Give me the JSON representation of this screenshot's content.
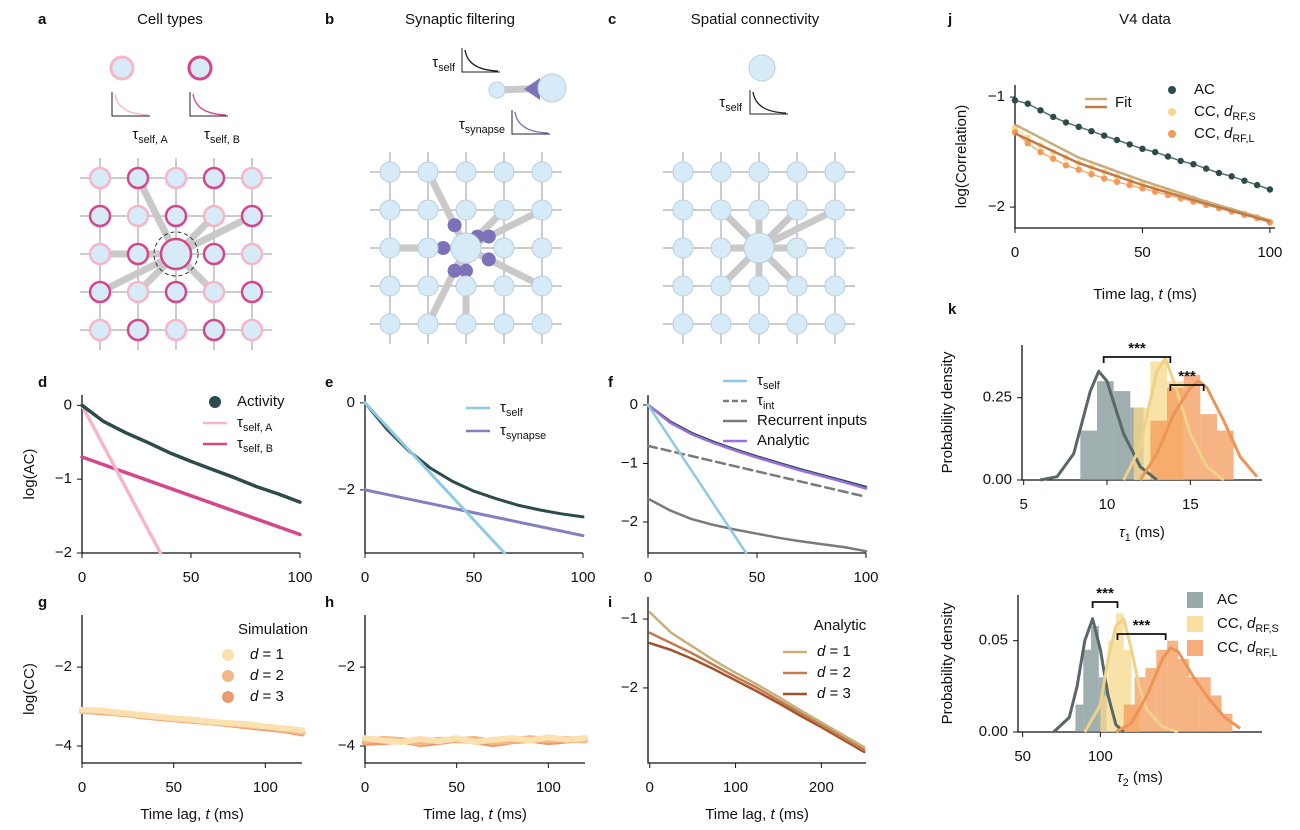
{
  "diagrams": [
    {
      "letter": "a",
      "title": "Cell types",
      "labels": [
        "τself, A",
        "τself, B"
      ]
    },
    {
      "letter": "b",
      "title": "Synaptic filtering",
      "labels": [
        "τself",
        "τsynapse"
      ]
    },
    {
      "letter": "c",
      "title": "Spatial connectivity",
      "labels": [
        "τself"
      ]
    }
  ],
  "chart_data": [
    {
      "letter": "d",
      "type": "line",
      "ylabel": "log(AC)",
      "xlim": [
        0,
        100
      ],
      "ylim": [
        -2,
        0.14
      ],
      "xticks": [
        0,
        50,
        100
      ],
      "yticks": [
        0,
        {
          "value": -1,
          "label": "−1"
        },
        {
          "value": -2,
          "label": "−2"
        }
      ],
      "legend": "upper right",
      "series": [
        {
          "name": "Activity",
          "color": "#2e4b4b",
          "marker": "o",
          "x": [
            0,
            10,
            20,
            30,
            40,
            50,
            60,
            70,
            80,
            90,
            100
          ],
          "values": [
            0,
            -0.22,
            -0.37,
            -0.5,
            -0.64,
            -0.76,
            -0.87,
            -0.98,
            -1.1,
            -1.2,
            -1.31
          ]
        },
        {
          "name": "τself, A",
          "color": "#f7b6c8",
          "x": [
            0,
            36
          ],
          "values": [
            0,
            -2
          ]
        },
        {
          "name": "τself, B",
          "color": "#d6478a",
          "x": [
            0,
            100
          ],
          "values": [
            -0.7,
            -1.75
          ]
        }
      ]
    },
    {
      "letter": "e",
      "type": "line",
      "xlim": [
        0,
        100
      ],
      "ylim": [
        -3.45,
        0.18
      ],
      "xticks": [
        0,
        50,
        100
      ],
      "yticks": [
        0,
        {
          "value": -2,
          "label": "−2"
        }
      ],
      "legend": "upper right",
      "series": [
        {
          "name": "τself",
          "color": "#8ecae6",
          "x": [
            0,
            64
          ],
          "values": [
            0,
            -3.45
          ]
        },
        {
          "name": "τsynapse",
          "color": "#8480c0",
          "x": [
            0,
            100
          ],
          "values": [
            -2,
            -3.05
          ]
        },
        {
          "color": "#2e4b4b",
          "x": [
            0,
            10,
            20,
            30,
            40,
            50,
            60,
            70,
            80,
            90,
            100
          ],
          "values": [
            0,
            -0.6,
            -1.1,
            -1.5,
            -1.8,
            -2.03,
            -2.2,
            -2.35,
            -2.46,
            -2.55,
            -2.62
          ]
        }
      ]
    },
    {
      "letter": "f",
      "type": "line",
      "xlim": [
        0,
        100
      ],
      "ylim": [
        -2.53,
        0.17
      ],
      "xticks": [
        0,
        50,
        100
      ],
      "yticks": [
        0,
        {
          "value": -1,
          "label": "−1"
        },
        {
          "value": -2,
          "label": "−2"
        }
      ],
      "legend": "upper right",
      "series": [
        {
          "name": "τself",
          "color": "#8ecae6",
          "x": [
            0,
            45
          ],
          "values": [
            0,
            -2.53
          ]
        },
        {
          "name": "τint",
          "color": "#7a7a7a",
          "dash": true,
          "x": [
            0,
            100
          ],
          "values": [
            -0.7,
            -1.57
          ]
        },
        {
          "name": "Recurrent inputs",
          "color": "#7a7a7a",
          "x": [
            0,
            10,
            20,
            30,
            40,
            50,
            60,
            70,
            80,
            90,
            100
          ],
          "values": [
            -1.6,
            -1.8,
            -1.95,
            -2.05,
            -2.13,
            -2.2,
            -2.27,
            -2.33,
            -2.38,
            -2.43,
            -2.5
          ]
        },
        {
          "name": "Analytic",
          "color": "#9b6fe0",
          "x": [
            0,
            10,
            20,
            30,
            40,
            50,
            60,
            70,
            80,
            90,
            100
          ],
          "values": [
            0,
            -0.3,
            -0.5,
            -0.65,
            -0.78,
            -0.9,
            -1.01,
            -1.12,
            -1.22,
            -1.32,
            -1.43
          ]
        },
        {
          "color": "#2e4b4b",
          "x": [
            0,
            10,
            20,
            30,
            40,
            50,
            60,
            70,
            80,
            90,
            100
          ],
          "values": [
            0,
            -0.28,
            -0.48,
            -0.63,
            -0.76,
            -0.88,
            -0.99,
            -1.1,
            -1.2,
            -1.3,
            -1.4
          ]
        }
      ]
    },
    {
      "letter": "j",
      "type": "scatter",
      "title": "V4 data",
      "xlabel": "Time lag, t (ms)",
      "ylabel": "log(Correlation)",
      "xlim": [
        0,
        102
      ],
      "ylim": [
        -2.19,
        -0.89
      ],
      "xticks": [
        0,
        50,
        100
      ],
      "yticks": [
        {
          "value": -1,
          "label": "−1"
        },
        {
          "value": -2,
          "label": "−2"
        }
      ],
      "legend": "upper right",
      "fit_label": "Fit",
      "x": [
        0,
        5,
        10,
        15,
        20,
        25,
        30,
        35,
        40,
        45,
        50,
        55,
        60,
        65,
        70,
        75,
        80,
        85,
        90,
        95,
        100
      ],
      "series": [
        {
          "name": "AC",
          "color": "#2e4b4b",
          "marker": "o",
          "values": [
            -1.03,
            -1.06,
            -1.12,
            -1.18,
            -1.23,
            -1.27,
            -1.31,
            -1.35,
            -1.39,
            -1.43,
            -1.47,
            -1.5,
            -1.54,
            -1.58,
            -1.61,
            -1.65,
            -1.69,
            -1.72,
            -1.76,
            -1.8,
            -1.84
          ]
        },
        {
          "name": "CC, dRF,S",
          "color": "#f7d88a",
          "marker": "o",
          "values": [
            -1.28,
            -1.37,
            -1.44,
            -1.5,
            -1.55,
            -1.6,
            -1.64,
            -1.68,
            -1.72,
            -1.76,
            -1.79,
            -1.82,
            -1.85,
            -1.89,
            -1.92,
            -1.96,
            -2,
            -2.03,
            -2.06,
            -2.09,
            -2.13
          ]
        },
        {
          "name": "CC, dRF,L",
          "color": "#f39a5a",
          "marker": "o",
          "values": [
            -1.32,
            -1.42,
            -1.5,
            -1.56,
            -1.62,
            -1.66,
            -1.7,
            -1.74,
            -1.77,
            -1.8,
            -1.83,
            -1.86,
            -1.89,
            -1.92,
            -1.95,
            -1.98,
            -2.01,
            -2.04,
            -2.07,
            -2.1,
            -2.14
          ]
        },
        {
          "color": "#c9ab7c",
          "line": true,
          "x": [
            0,
            25,
            50,
            75,
            100
          ],
          "values": [
            -1.25,
            -1.55,
            -1.76,
            -1.95,
            -2.12
          ]
        },
        {
          "color": "#c07a4a",
          "line": true,
          "x": [
            0,
            25,
            50,
            75,
            100
          ],
          "values": [
            -1.33,
            -1.6,
            -1.8,
            -1.97,
            -2.13
          ]
        }
      ]
    },
    {
      "letter": "k",
      "type": "hist",
      "xlabel": "τ1  (ms)",
      "ylabel": "Probability density",
      "xlim": [
        4.9,
        19.3
      ],
      "ylim": [
        0,
        0.41
      ],
      "xticks": [
        5,
        10,
        15
      ],
      "yticks": [
        {
          "value": 0,
          "label": "0.00"
        },
        0.25
      ],
      "annotations": [
        {
          "x": [
            9.8,
            13.8
          ],
          "text": "***"
        },
        {
          "x": [
            13.8,
            15.8
          ],
          "text": "***"
        }
      ],
      "series": [
        {
          "color": "#7f9393",
          "bins": [
            8.4,
            9.4,
            10.4,
            11.4,
            12.2
          ],
          "counts": [
            0.15,
            0.3,
            0.27,
            0.22
          ],
          "density": {
            "x": [
              6,
              7,
              8,
              9,
              9.5,
              10,
              10.5,
              11,
              12,
              13
            ],
            "values": [
              0,
              0.01,
              0.08,
              0.27,
              0.33,
              0.3,
              0.22,
              0.14,
              0.04,
              0
            ]
          }
        },
        {
          "color": "#f7d88a",
          "bins": [
            11.6,
            12.6,
            13.6,
            14.6
          ],
          "counts": [
            0.22,
            0.36,
            0.3
          ],
          "density": {
            "x": [
              11,
              12,
              12.5,
              13,
              13.5,
              14,
              15,
              16,
              17
            ],
            "values": [
              0,
              0.1,
              0.22,
              0.33,
              0.37,
              0.3,
              0.14,
              0.04,
              0
            ]
          }
        },
        {
          "color": "#f39a5a",
          "bins": [
            12.6,
            13.6,
            14.6,
            15.6,
            16.6,
            17.6
          ],
          "counts": [
            0.18,
            0.28,
            0.32,
            0.2,
            0.15
          ],
          "density": {
            "x": [
              12,
              13,
              14,
              15,
              15.5,
              16,
              17,
              18,
              19
            ],
            "values": [
              0,
              0.08,
              0.2,
              0.28,
              0.3,
              0.28,
              0.18,
              0.07,
              0.01
            ]
          }
        }
      ]
    },
    {
      "type": "hist",
      "xlabel": "τ2  (ms)",
      "ylabel": "Probability density",
      "xlim": [
        47,
        204
      ],
      "ylim": [
        0,
        0.075
      ],
      "xticks": [
        50,
        100
      ],
      "yticks": [
        {
          "value": 0,
          "label": "0.00"
        },
        0.05
      ],
      "legend": "upper right",
      "annotations": [
        {
          "x": [
            95,
            111
          ],
          "text": "***"
        },
        {
          "x": [
            111,
            142
          ],
          "text": "***"
        }
      ],
      "series": [
        {
          "name": "AC",
          "color": "#7f9393",
          "bins": [
            84,
            89,
            94,
            99,
            104
          ],
          "counts": [
            0.015,
            0.045,
            0.058,
            0.03
          ],
          "density": {
            "x": [
              70,
              80,
              85,
              90,
              95,
              100,
              105,
              110,
              115
            ],
            "values": [
              0,
              0.008,
              0.025,
              0.05,
              0.062,
              0.045,
              0.02,
              0.004,
              0
            ]
          }
        },
        {
          "name": "CC, dRF,S",
          "color": "#f7d88a",
          "bins": [
            100,
            105,
            110,
            115,
            120,
            125
          ],
          "counts": [
            0.02,
            0.05,
            0.065,
            0.045,
            0.015
          ],
          "density": {
            "x": [
              90,
              100,
              105,
              110,
              115,
              120,
              125,
              130,
              140,
              150
            ],
            "values": [
              0,
              0.015,
              0.04,
              0.058,
              0.062,
              0.045,
              0.025,
              0.012,
              0.003,
              0
            ]
          }
        },
        {
          "name": "CC, dRF,L",
          "color": "#f39a5a",
          "bins": [
            115,
            122,
            129,
            136,
            143,
            150,
            157,
            164,
            171,
            178,
            185
          ],
          "counts": [
            0.015,
            0.03,
            0.035,
            0.045,
            0.05,
            0.04,
            0.03,
            0.03,
            0.02,
            0.01
          ],
          "density": {
            "x": [
              110,
              120,
              130,
              140,
              145,
              150,
              160,
              170,
              180,
              190
            ],
            "values": [
              0,
              0.005,
              0.02,
              0.04,
              0.046,
              0.044,
              0.03,
              0.018,
              0.008,
              0.002
            ]
          }
        }
      ]
    },
    {
      "letter": "g",
      "type": "line",
      "xlabel": "Time lag, t (ms)",
      "ylabel": "log(CC)",
      "xlim": [
        0,
        120
      ],
      "ylim": [
        -4.43,
        -0.68
      ],
      "xticks": [
        0,
        50,
        100
      ],
      "yticks": [
        {
          "value": -2,
          "label": "−2"
        },
        {
          "value": -4,
          "label": "−4"
        }
      ],
      "legend": "upper right",
      "legend_title": "Simulation",
      "x": [
        0,
        10,
        20,
        30,
        40,
        50,
        60,
        70,
        80,
        90,
        100,
        110,
        120
      ],
      "series": [
        {
          "name": "d = 1",
          "color": "#fbe0b0",
          "marker": "o",
          "values": [
            -3.08,
            -3.1,
            -3.15,
            -3.2,
            -3.25,
            -3.3,
            -3.33,
            -3.38,
            -3.42,
            -3.45,
            -3.5,
            -3.55,
            -3.6
          ]
        },
        {
          "name": "d = 2",
          "color": "#f5b783",
          "marker": "o",
          "values": [
            -3.12,
            -3.12,
            -3.18,
            -3.22,
            -3.27,
            -3.3,
            -3.35,
            -3.4,
            -3.43,
            -3.48,
            -3.52,
            -3.58,
            -3.65
          ]
        },
        {
          "name": "d = 3",
          "color": "#eb9a6e",
          "marker": "o",
          "values": [
            -3.1,
            -3.14,
            -3.17,
            -3.23,
            -3.28,
            -3.32,
            -3.36,
            -3.4,
            -3.45,
            -3.5,
            -3.55,
            -3.6,
            -3.68
          ]
        }
      ]
    },
    {
      "letter": "h",
      "type": "line",
      "xlabel": "Time lag, t (ms)",
      "xlim": [
        0,
        120
      ],
      "ylim": [
        -4.43,
        -0.68
      ],
      "xticks": [
        0,
        50,
        100
      ],
      "yticks": [
        {
          "value": -2,
          "label": "−2"
        },
        {
          "value": -4,
          "label": "−4"
        }
      ],
      "x": [
        0,
        10,
        20,
        30,
        40,
        50,
        60,
        70,
        80,
        90,
        100,
        110,
        120
      ],
      "series": [
        {
          "color": "#fbe0b0",
          "values": [
            -3.8,
            -3.86,
            -3.9,
            -3.82,
            -3.88,
            -3.8,
            -3.9,
            -3.84,
            -3.8,
            -3.86,
            -3.78,
            -3.84,
            -3.8
          ]
        },
        {
          "color": "#f5b783",
          "values": [
            -3.88,
            -3.82,
            -3.85,
            -3.92,
            -3.84,
            -3.86,
            -3.82,
            -3.9,
            -3.86,
            -3.8,
            -3.85,
            -3.82,
            -3.86
          ]
        },
        {
          "color": "#eb9a6e",
          "values": [
            -3.92,
            -3.9,
            -3.86,
            -3.95,
            -3.9,
            -3.84,
            -3.88,
            -3.95,
            -3.88,
            -3.84,
            -3.9,
            -3.86,
            -3.82
          ]
        }
      ]
    },
    {
      "letter": "i",
      "type": "line",
      "xlabel": "Time lag, t (ms)",
      "xlim": [
        -2,
        252
      ],
      "ylim": [
        -3.09,
        -0.68
      ],
      "xticks": [
        0,
        100,
        200
      ],
      "yticks": [
        {
          "value": -1,
          "label": "−1"
        },
        {
          "value": -2,
          "label": "−2"
        }
      ],
      "legend": "upper right",
      "legend_title": "Analytic",
      "x": [
        0,
        25,
        50,
        75,
        100,
        125,
        150,
        175,
        200,
        225,
        250
      ],
      "series": [
        {
          "name": "d = 1",
          "color": "#c8b07a",
          "values": [
            -0.9,
            -1.2,
            -1.4,
            -1.6,
            -1.78,
            -1.95,
            -2.13,
            -2.32,
            -2.5,
            -2.68,
            -2.86
          ]
        },
        {
          "name": "d = 2",
          "color": "#c47a4c",
          "values": [
            -1.2,
            -1.35,
            -1.5,
            -1.67,
            -1.84,
            -2,
            -2.18,
            -2.36,
            -2.54,
            -2.72,
            -2.9
          ]
        },
        {
          "name": "d = 3",
          "color": "#a5522c",
          "values": [
            -1.35,
            -1.45,
            -1.58,
            -1.73,
            -1.89,
            -2.05,
            -2.22,
            -2.4,
            -2.57,
            -2.75,
            -2.93
          ]
        }
      ]
    }
  ]
}
